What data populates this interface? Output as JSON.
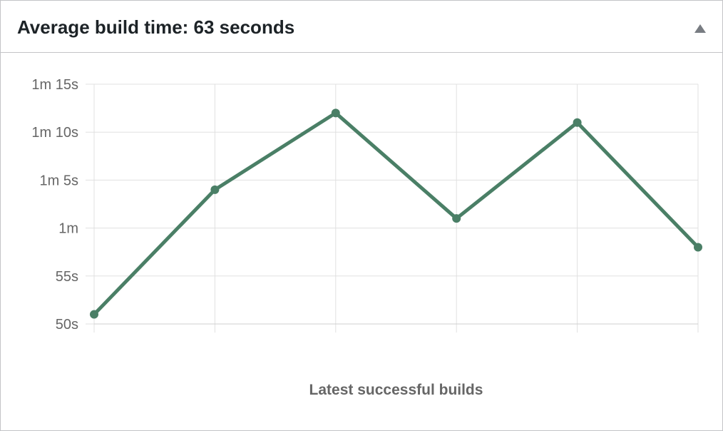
{
  "header": {
    "title": "Average build time: 63 seconds",
    "toggle_icon": "triangle-up-icon"
  },
  "colors": {
    "line": "#4a7f66",
    "grid": "#e0e0e0",
    "axis_text": "#666666",
    "border": "#c3c4c7"
  },
  "chart_data": {
    "type": "line",
    "xlabel": "Latest successful builds",
    "ylabel": "",
    "ylim": [
      50,
      75
    ],
    "y_ticks": [
      {
        "value": 50,
        "label": "50s"
      },
      {
        "value": 55,
        "label": "55s"
      },
      {
        "value": 60,
        "label": "1m"
      },
      {
        "value": 65,
        "label": "1m 5s"
      },
      {
        "value": 70,
        "label": "1m 10s"
      },
      {
        "value": 75,
        "label": "1m 15s"
      }
    ],
    "grid": true,
    "series": [
      {
        "values": [
          51,
          64,
          72,
          61,
          71,
          58
        ]
      }
    ]
  }
}
